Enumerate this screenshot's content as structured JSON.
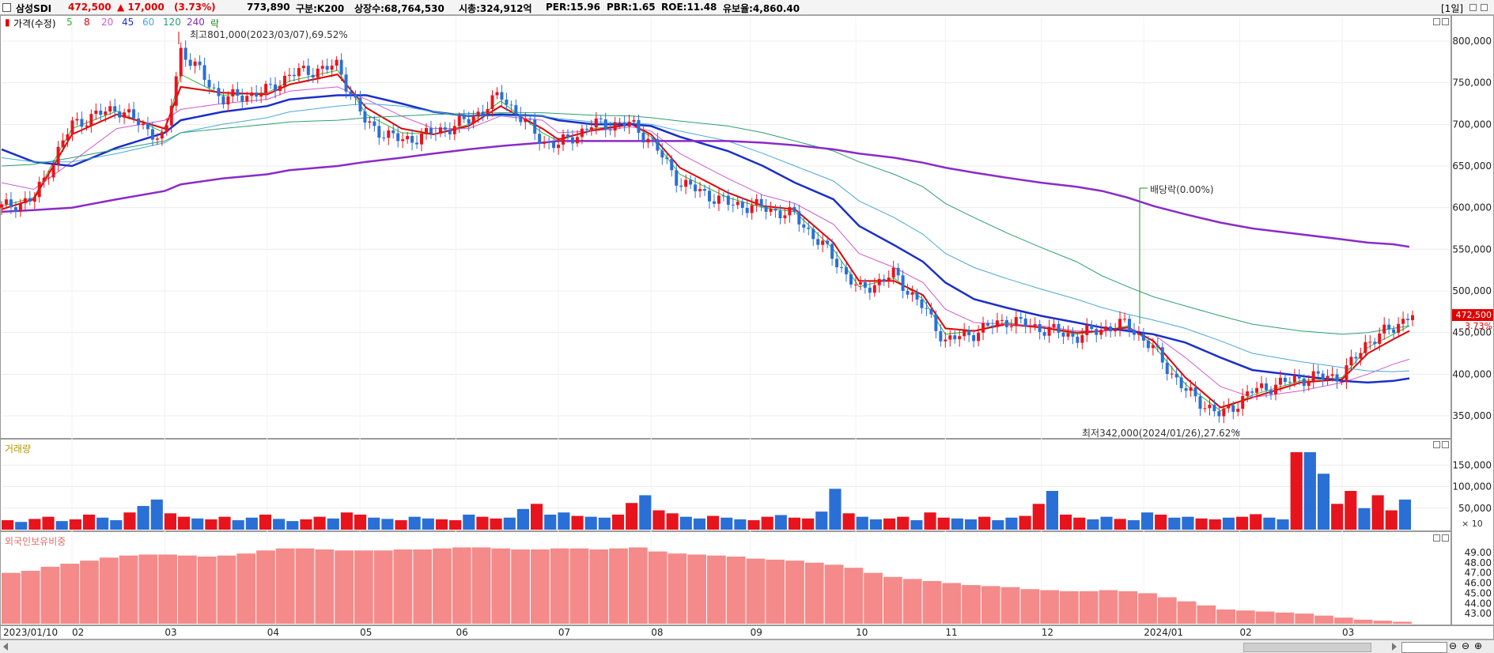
{
  "header": {
    "name": "삼성SDI",
    "price": "472,500",
    "change": "▲ 17,000",
    "change_pct": "(3.73%)",
    "volume": "773,890",
    "market": "구분:K200",
    "shares": "상장수:68,764,530",
    "mcap": "시총:324,912억",
    "per": "PER:15.96",
    "pbr": "PBR:1.65",
    "roe": "ROE:11.48",
    "float": "유보율:4,860.40",
    "period": "[1일]"
  },
  "legend": {
    "price": "가격(수정)",
    "ma5": "5",
    "ma8": "8",
    "ma20": "20",
    "ma45": "45",
    "ma60": "60",
    "ma120": "120",
    "ma240": "240",
    "ex": "락"
  },
  "annotations": {
    "high": "최고801,000(2023/03/07),69.52%",
    "low": "최저342,000(2024/01/26),27.62%",
    "dividend": "배당락(0.00%)",
    "last_price": "472,500",
    "last_pct": "3.73%"
  },
  "panels": {
    "volume_title": "거래량",
    "volume_unit": "× 10",
    "foreign_title": "외국인보유비중"
  },
  "colors": {
    "up": "#e8141d",
    "down": "#2a6fd6",
    "ma5": "#35b235",
    "ma8": "#e00000",
    "ma20": "#d05ad0",
    "ma45": "#1a2fc8",
    "ma60": "#4aa8d8",
    "ma120": "#2aa070",
    "ma240": "#8a2bc8",
    "foreign_bar": "#f58a8a"
  },
  "chart_data": [
    {
      "type": "candlestick",
      "title": "삼성SDI",
      "x_ticks": [
        "2023/01/10",
        "02",
        "03",
        "04",
        "05",
        "06",
        "07",
        "08",
        "09",
        "10",
        "11",
        "12",
        "2024/01",
        "02",
        "03"
      ],
      "y_ticks": [
        "800,000",
        "750,000",
        "700,000",
        "650,000",
        "600,000",
        "550,000",
        "500,000",
        "450,000",
        "400,000",
        "350,000"
      ],
      "ylim": [
        320000,
        820000
      ],
      "close_series": {
        "dates": [
          "2023-01-10",
          "2023-01-20",
          "2023-02-01",
          "2023-02-15",
          "2023-03-02",
          "2023-03-07",
          "2023-03-20",
          "2023-04-03",
          "2023-04-10",
          "2023-04-25",
          "2023-05-04",
          "2023-05-15",
          "2023-05-25",
          "2023-06-05",
          "2023-06-15",
          "2023-06-28",
          "2023-07-03",
          "2023-07-14",
          "2023-07-26",
          "2023-08-01",
          "2023-08-10",
          "2023-08-25",
          "2023-09-05",
          "2023-09-15",
          "2023-09-27",
          "2023-10-05",
          "2023-10-16",
          "2023-10-25",
          "2023-11-01",
          "2023-11-10",
          "2023-11-20",
          "2023-12-01",
          "2023-12-12",
          "2023-12-20",
          "2023-12-28",
          "2024-01-05",
          "2024-01-15",
          "2024-01-26",
          "2024-02-05",
          "2024-02-20",
          "2024-03-04",
          "2024-03-12",
          "2024-03-20",
          "2024-03-25"
        ],
        "close": [
          600000,
          610000,
          700000,
          720000,
          680000,
          790000,
          730000,
          740000,
          760000,
          770000,
          700000,
          680000,
          690000,
          705000,
          735000,
          680000,
          675000,
          700000,
          700000,
          680000,
          630000,
          605000,
          600000,
          590000,
          540000,
          500000,
          520000,
          480000,
          440000,
          450000,
          465000,
          455000,
          445000,
          455000,
          460000,
          430000,
          380000,
          350000,
          380000,
          395000,
          398000,
          440000,
          455000,
          472500
        ]
      },
      "moving_averages": [
        {
          "name": "5",
          "values": [
            602000,
            612000,
            695000,
            716000,
            690000,
            760000,
            735000,
            738000,
            752000,
            765000,
            712000,
            690000,
            688000,
            700000,
            728000,
            690000,
            680000,
            695000,
            700000,
            685000,
            640000,
            612000,
            600000,
            595000,
            550000,
            505000,
            515000,
            490000,
            448000,
            452000,
            462000,
            456000,
            448000,
            452000,
            458000,
            435000,
            388000,
            356000,
            375000,
            392000,
            396000,
            432000,
            448000,
            458000
          ]
        },
        {
          "name": "8",
          "values": [
            598000,
            610000,
            688000,
            712000,
            695000,
            745000,
            738000,
            736000,
            748000,
            760000,
            720000,
            695000,
            688000,
            698000,
            722000,
            695000,
            682000,
            693000,
            700000,
            688000,
            648000,
            618000,
            602000,
            598000,
            558000,
            512000,
            512000,
            495000,
            455000,
            452000,
            460000,
            456000,
            450000,
            452000,
            456000,
            440000,
            396000,
            360000,
            372000,
            390000,
            394000,
            425000,
            442000,
            452000
          ]
        },
        {
          "name": "20",
          "values": [
            630000,
            622000,
            655000,
            695000,
            705000,
            718000,
            725000,
            730000,
            740000,
            745000,
            730000,
            710000,
            695000,
            695000,
            710000,
            705000,
            690000,
            692000,
            697000,
            692000,
            665000,
            635000,
            615000,
            605000,
            580000,
            545000,
            528000,
            510000,
            478000,
            462000,
            460000,
            458000,
            452000,
            452000,
            454000,
            448000,
            420000,
            385000,
            372000,
            380000,
            390000,
            400000,
            412000,
            418000
          ]
        },
        {
          "name": "45",
          "values": [
            670000,
            655000,
            650000,
            672000,
            690000,
            705000,
            715000,
            722000,
            730000,
            735000,
            735000,
            725000,
            715000,
            710000,
            712000,
            710000,
            705000,
            700000,
            700000,
            698000,
            685000,
            668000,
            650000,
            630000,
            610000,
            578000,
            555000,
            535000,
            510000,
            490000,
            480000,
            470000,
            462000,
            456000,
            452000,
            448000,
            438000,
            420000,
            405000,
            398000,
            392000,
            390000,
            392000,
            395000
          ]
        },
        {
          "name": "60",
          "values": [
            660000,
            655000,
            655000,
            665000,
            678000,
            690000,
            700000,
            708000,
            715000,
            722000,
            725000,
            722000,
            715000,
            710000,
            710000,
            710000,
            707000,
            703000,
            702000,
            700000,
            692000,
            680000,
            665000,
            650000,
            632000,
            608000,
            588000,
            568000,
            545000,
            528000,
            515000,
            502000,
            490000,
            480000,
            472000,
            465000,
            455000,
            440000,
            425000,
            415000,
            408000,
            404000,
            403000,
            404000
          ]
        },
        {
          "name": "120",
          "values": [
            650000,
            652000,
            660000,
            670000,
            680000,
            690000,
            695000,
            700000,
            703000,
            705000,
            708000,
            710000,
            712000,
            713000,
            714000,
            714000,
            713000,
            711000,
            710000,
            708000,
            704000,
            698000,
            690000,
            680000,
            668000,
            655000,
            640000,
            625000,
            605000,
            588000,
            570000,
            552000,
            535000,
            518000,
            505000,
            493000,
            482000,
            470000,
            460000,
            452000,
            448000,
            450000,
            455000,
            458000
          ]
        },
        {
          "name": "240",
          "values": [
            595000,
            597000,
            600000,
            610000,
            620000,
            628000,
            635000,
            640000,
            645000,
            650000,
            655000,
            660000,
            665000,
            670000,
            674000,
            678000,
            680000,
            680000,
            680000,
            680000,
            680000,
            680000,
            678000,
            675000,
            670000,
            665000,
            660000,
            654000,
            648000,
            642000,
            636000,
            630000,
            625000,
            620000,
            612000,
            602000,
            592000,
            582000,
            575000,
            568000,
            562000,
            558000,
            556000,
            553000
          ]
        }
      ]
    },
    {
      "type": "bar",
      "title": "거래량",
      "y_ticks": [
        "150,000",
        "100,000",
        "50,000"
      ],
      "unit": "× 10",
      "ylim": [
        0,
        180000
      ],
      "values": [
        22000,
        18000,
        25000,
        30000,
        20000,
        24000,
        35000,
        28000,
        22000,
        40000,
        55000,
        70000,
        38000,
        30000,
        26000,
        24000,
        30000,
        22000,
        28000,
        35000,
        25000,
        20000,
        24000,
        30000,
        26000,
        40000,
        35000,
        28000,
        25000,
        22000,
        30000,
        26000,
        24000,
        22000,
        35000,
        30000,
        26000,
        28000,
        48000,
        60000,
        35000,
        40000,
        32000,
        30000,
        28000,
        35000,
        62000,
        80000,
        45000,
        38000,
        30000,
        26000,
        32000,
        28000,
        24000,
        22000,
        30000,
        34000,
        28000,
        26000,
        42000,
        95000,
        38000,
        30000,
        24000,
        26000,
        30000,
        22000,
        40000,
        28000,
        26000,
        24000,
        30000,
        22000,
        28000,
        32000,
        60000,
        90000,
        35000,
        28000,
        24000,
        30000,
        25000,
        22000,
        40000,
        35000,
        28000,
        30000,
        26000,
        24000,
        28000,
        30000,
        36000,
        28000,
        24000,
        180000,
        180000,
        130000,
        60000,
        90000,
        50000,
        80000,
        45000,
        70000
      ]
    },
    {
      "type": "bar",
      "title": "외국인보유비중",
      "y_ticks": [
        "49.00",
        "48.00",
        "47.00",
        "46.00",
        "45.00",
        "44.00",
        "43.00"
      ],
      "ylim": [
        42.0,
        50.0
      ],
      "values": [
        47.0,
        47.2,
        47.6,
        47.9,
        48.2,
        48.5,
        48.7,
        48.8,
        48.8,
        48.7,
        48.6,
        48.7,
        48.9,
        49.2,
        49.4,
        49.4,
        49.3,
        49.2,
        49.2,
        49.2,
        49.3,
        49.3,
        49.4,
        49.5,
        49.5,
        49.4,
        49.3,
        49.3,
        49.4,
        49.4,
        49.3,
        49.4,
        49.5,
        49.1,
        48.9,
        48.8,
        48.7,
        48.6,
        48.4,
        48.3,
        48.2,
        48.0,
        47.8,
        47.5,
        47.0,
        46.6,
        46.4,
        46.2,
        46.0,
        45.8,
        45.7,
        45.6,
        45.4,
        45.3,
        45.2,
        45.2,
        45.3,
        45.2,
        45.0,
        44.6,
        44.2,
        43.8,
        43.4,
        43.3,
        43.2,
        43.1,
        43.0,
        42.8,
        42.6,
        42.4,
        42.3,
        42.2
      ]
    }
  ]
}
